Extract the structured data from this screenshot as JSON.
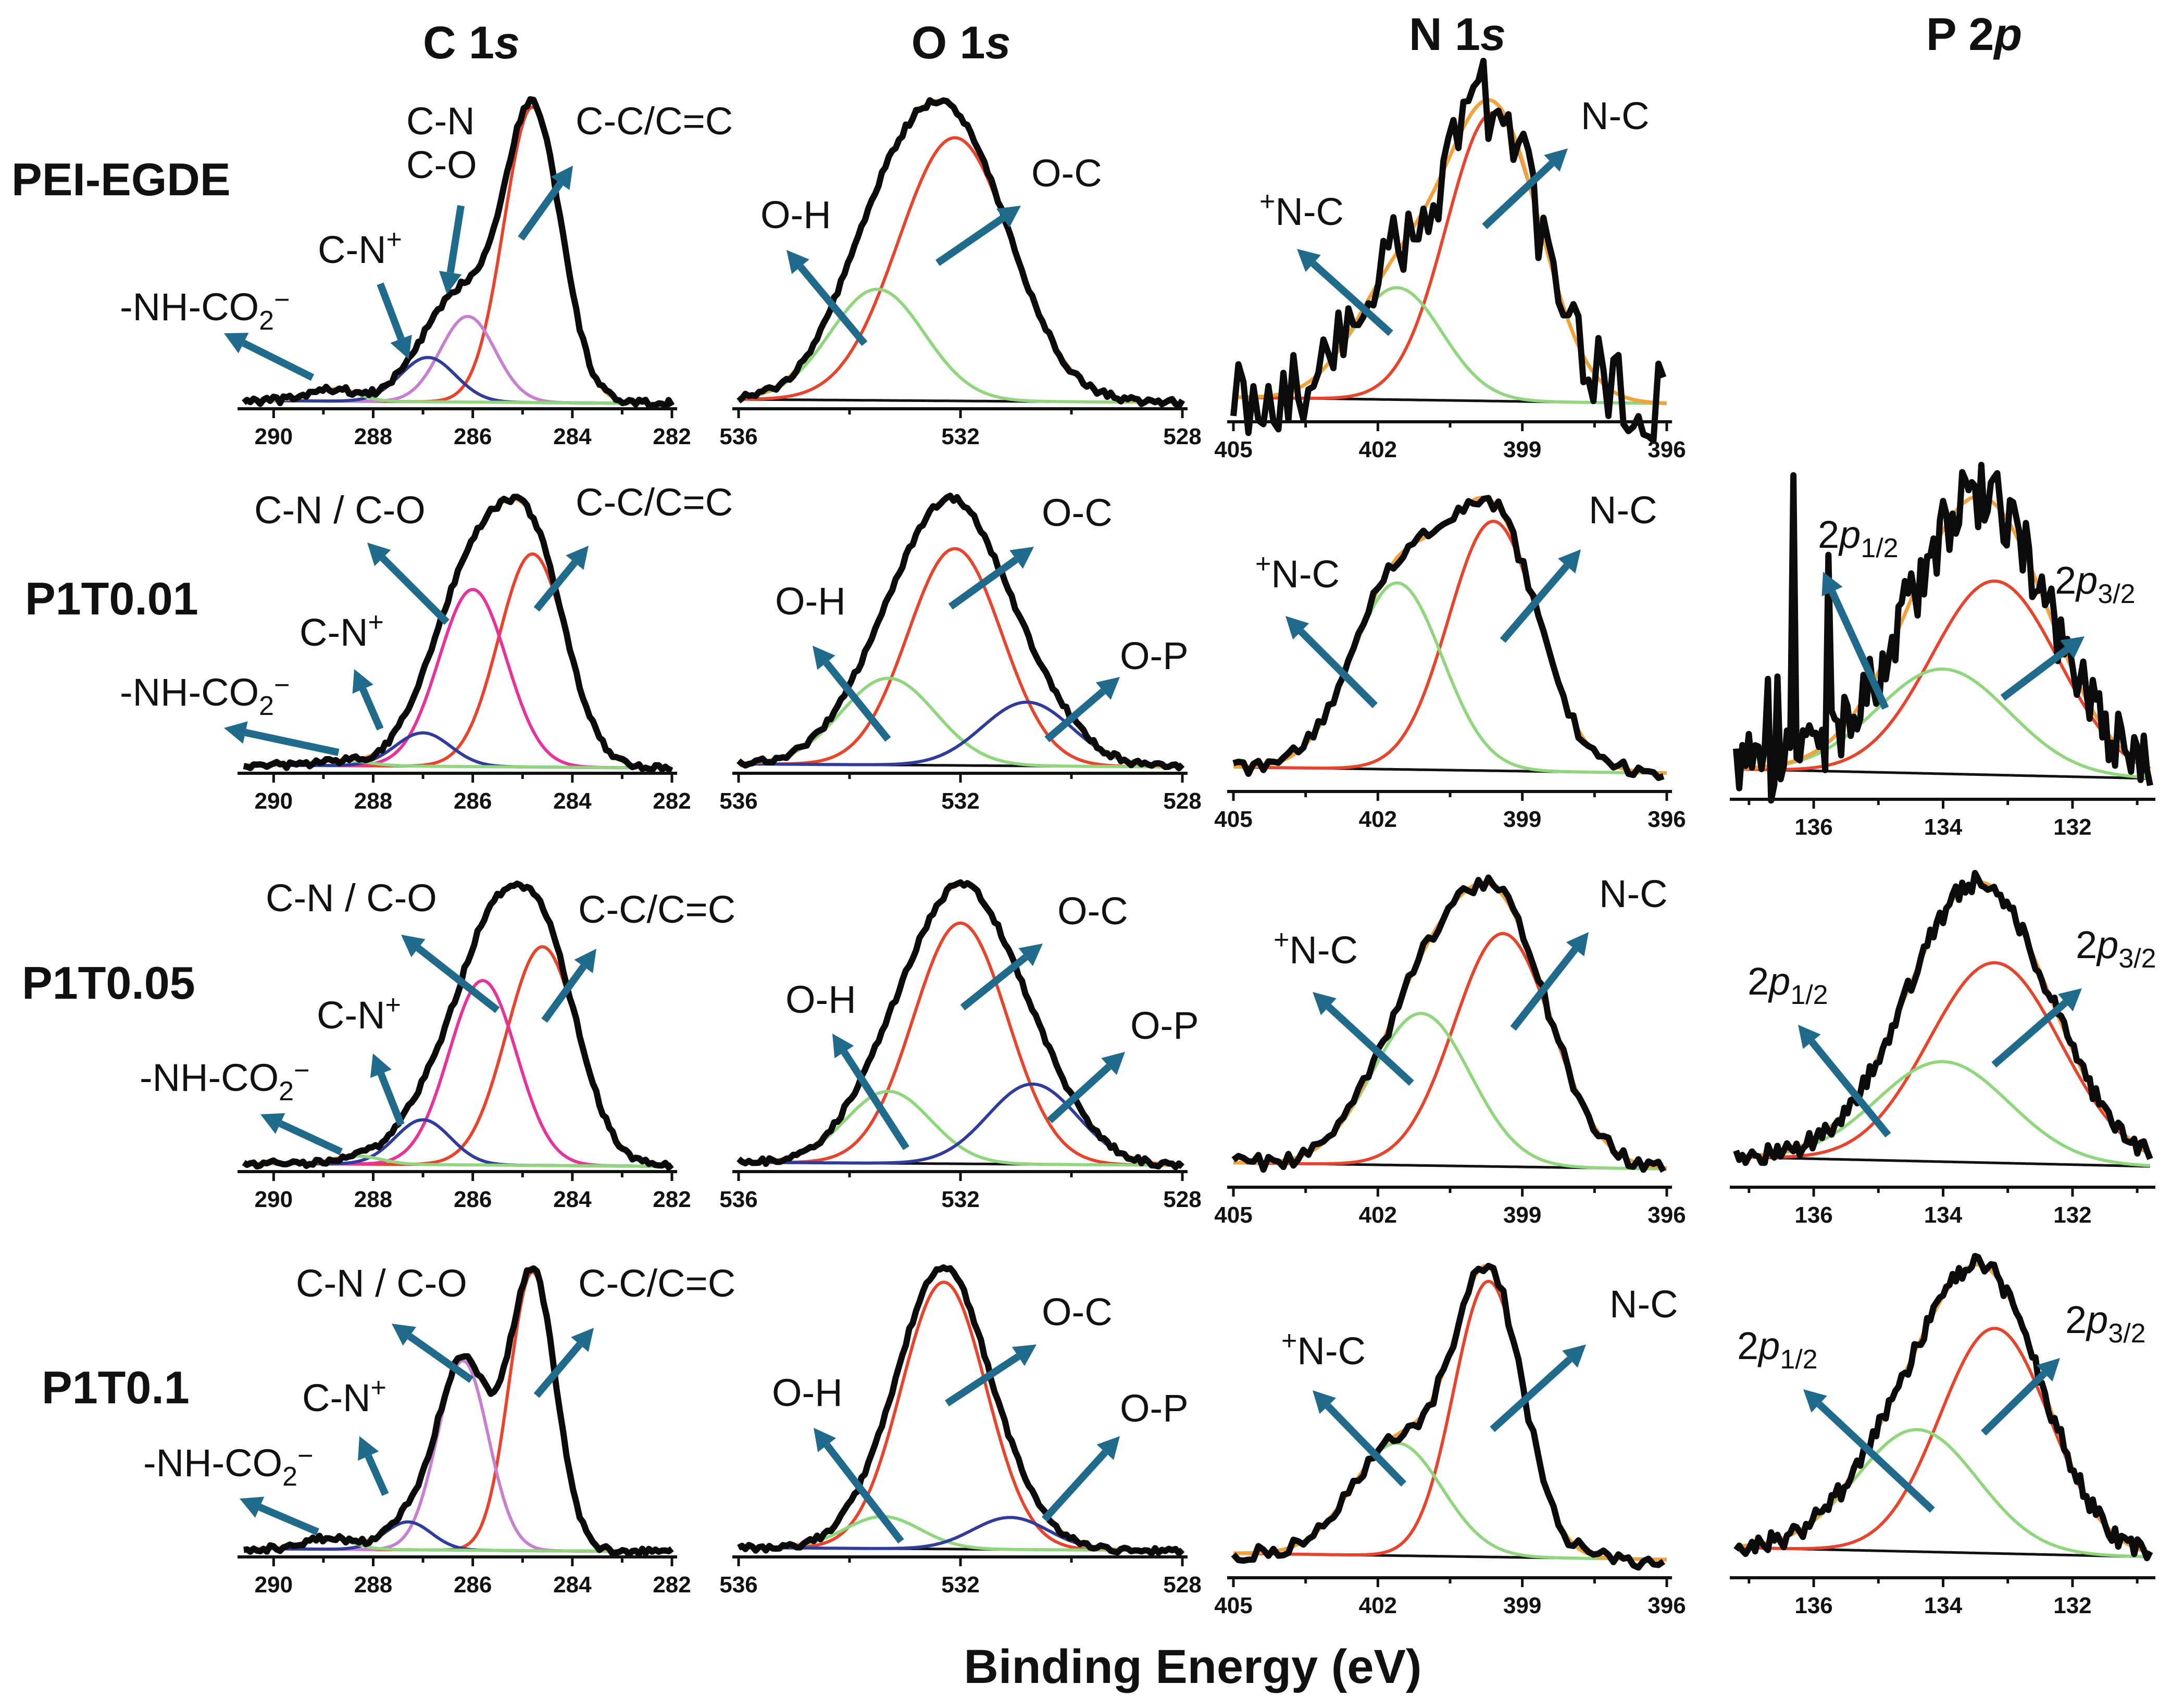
{
  "chart_data": {
    "type": "line",
    "title": "",
    "xlabel": "Binding Energy (eV)",
    "ylabel": "",
    "colors": {
      "measured": "#0b0b0b",
      "envelope": "#f2a23a",
      "baseline": "#111111",
      "red": "#e8442c",
      "green": "#8fd67d",
      "blue": "#2f3c9c",
      "purple": "#c77fd0",
      "magenta": "#e8319a",
      "arrow": "#206a8c"
    },
    "columns": [
      {
        "id": "C1s",
        "title_main": "C 1",
        "title_italic": "s",
        "xlim": [
          290.6,
          282
        ],
        "ticks": [
          290,
          288,
          286,
          284,
          282
        ]
      },
      {
        "id": "O1s",
        "title_main": "O 1",
        "title_italic": "s",
        "xlim": [
          536,
          528
        ],
        "ticks": [
          536,
          532,
          528
        ]
      },
      {
        "id": "N1s",
        "title_main": "N 1",
        "title_italic": "s",
        "xlim": [
          405,
          396
        ],
        "ticks": [
          405,
          402,
          399,
          396
        ]
      },
      {
        "id": "P2p",
        "title_main": "P 2",
        "title_italic": "p",
        "xlim": [
          137.2,
          130.8
        ],
        "ticks": [
          136,
          134,
          132
        ]
      }
    ],
    "rows": [
      {
        "label": "PEI-EGDE",
        "panels": [
          {
            "column": "C1s",
            "components": [
              {
                "name": "C-C/C=C",
                "center": 284.8,
                "fwhm": 1.35,
                "amplitude": 1.0,
                "color": "red"
              },
              {
                "name": "C-N / C-O",
                "center": 286.1,
                "fwhm": 1.3,
                "amplitude": 0.29,
                "color": "purple"
              },
              {
                "name": "C-N+",
                "center": 286.9,
                "fwhm": 1.3,
                "amplitude": 0.15,
                "color": "blue"
              },
              {
                "name": "-NH-CO2-",
                "center": 288.8,
                "fwhm": 1.1,
                "amplitude": 0.04,
                "color": "green"
              }
            ],
            "annotations": [
              {
                "text": "C-N",
                "sub": "",
                "sup": ""
              },
              {
                "text": "C-O",
                "sub": "",
                "sup": ""
              },
              {
                "text": "C-C/C=C",
                "sub": "",
                "sup": ""
              },
              {
                "text": "C-N",
                "sub": "",
                "sup": "+"
              },
              {
                "text": "-NH-CO",
                "sub": "2",
                "sup": "−"
              }
            ]
          },
          {
            "column": "O1s",
            "components": [
              {
                "name": "O-C",
                "center": 532.1,
                "fwhm": 2.4,
                "amplitude": 0.9,
                "color": "red"
              },
              {
                "name": "O-H",
                "center": 533.5,
                "fwhm": 2.0,
                "amplitude": 0.38,
                "color": "green"
              }
            ],
            "annotations": [
              {
                "text": "O-C",
                "sub": "",
                "sup": ""
              },
              {
                "text": "O-H",
                "sub": "",
                "sup": ""
              }
            ]
          },
          {
            "column": "N1s",
            "components": [
              {
                "name": "N-C",
                "center": 399.6,
                "fwhm": 2.3,
                "amplitude": 0.85,
                "color": "red"
              },
              {
                "name": "+N-C",
                "center": 401.6,
                "fwhm": 2.2,
                "amplitude": 0.33,
                "color": "green"
              }
            ],
            "annotations": [
              {
                "text": "N-C",
                "sub": "",
                "sup": ""
              },
              {
                "text": "N-C",
                "sub": "",
                "sup": "+"
              }
            ]
          }
        ]
      },
      {
        "label": "P1T0.01",
        "panels": [
          {
            "column": "C1s",
            "components": [
              {
                "name": "C-C/C=C",
                "center": 284.8,
                "fwhm": 1.6,
                "amplitude": 0.83,
                "color": "red"
              },
              {
                "name": "C-N / C-O",
                "center": 286.0,
                "fwhm": 1.6,
                "amplitude": 0.69,
                "color": "magenta"
              },
              {
                "name": "C-N+",
                "center": 287.0,
                "fwhm": 1.3,
                "amplitude": 0.13,
                "color": "blue"
              },
              {
                "name": "-NH-CO2-",
                "center": 288.6,
                "fwhm": 1.2,
                "amplitude": 0.02,
                "color": "green"
              }
            ],
            "annotations": [
              {
                "text": "C-N / C-O",
                "sub": "",
                "sup": ""
              },
              {
                "text": "C-C/C=C",
                "sub": "",
                "sup": ""
              },
              {
                "text": "C-N",
                "sub": "",
                "sup": "+"
              },
              {
                "text": "-NH-CO",
                "sub": "2",
                "sup": "−"
              }
            ]
          },
          {
            "column": "O1s",
            "components": [
              {
                "name": "O-C",
                "center": 532.1,
                "fwhm": 2.0,
                "amplitude": 0.85,
                "color": "red"
              },
              {
                "name": "O-H",
                "center": 533.3,
                "fwhm": 2.0,
                "amplitude": 0.34,
                "color": "green"
              },
              {
                "name": "O-P",
                "center": 530.8,
                "fwhm": 1.9,
                "amplitude": 0.25,
                "color": "blue"
              }
            ],
            "annotations": [
              {
                "text": "O-C",
                "sub": "",
                "sup": ""
              },
              {
                "text": "O-H",
                "sub": "",
                "sup": ""
              },
              {
                "text": "O-P",
                "sub": "",
                "sup": ""
              }
            ]
          },
          {
            "column": "N1s",
            "components": [
              {
                "name": "N-C",
                "center": 399.6,
                "fwhm": 2.2,
                "amplitude": 0.95,
                "color": "red"
              },
              {
                "name": "+N-C",
                "center": 401.6,
                "fwhm": 2.2,
                "amplitude": 0.71,
                "color": "green"
              }
            ],
            "annotations": [
              {
                "text": "N-C",
                "sub": "",
                "sup": ""
              },
              {
                "text": "N-C",
                "sub": "",
                "sup": "+"
              }
            ]
          },
          {
            "column": "P2p",
            "components": [
              {
                "name": "2p3/2",
                "center": 133.2,
                "fwhm": 2.3,
                "amplitude": 0.5,
                "color": "red"
              },
              {
                "name": "2p1/2",
                "center": 134.0,
                "fwhm": 2.4,
                "amplitude": 0.27,
                "color": "green"
              }
            ],
            "annotations": [
              {
                "text": "2",
                "italic": "p",
                "sub": "1/2"
              },
              {
                "text": "2",
                "italic": "p",
                "sub": "3/2"
              }
            ]
          }
        ]
      },
      {
        "label": "P1T0.05",
        "panels": [
          {
            "column": "C1s",
            "components": [
              {
                "name": "C-C/C=C",
                "center": 284.6,
                "fwhm": 1.7,
                "amplitude": 0.83,
                "color": "red"
              },
              {
                "name": "C-N / C-O",
                "center": 285.8,
                "fwhm": 1.6,
                "amplitude": 0.7,
                "color": "magenta"
              },
              {
                "name": "C-N+",
                "center": 287.0,
                "fwhm": 1.3,
                "amplitude": 0.17,
                "color": "blue"
              },
              {
                "name": "-NH-CO2-",
                "center": 288.3,
                "fwhm": 1.1,
                "amplitude": 0.03,
                "color": "green"
              }
            ],
            "annotations": [
              {
                "text": "C-N / C-O",
                "sub": "",
                "sup": ""
              },
              {
                "text": "C-C/C=C",
                "sub": "",
                "sup": ""
              },
              {
                "text": "C-N",
                "sub": "",
                "sup": "+"
              },
              {
                "text": "-NH-CO",
                "sub": "2",
                "sup": "−"
              }
            ]
          },
          {
            "column": "O1s",
            "components": [
              {
                "name": "O-C",
                "center": 532.0,
                "fwhm": 2.0,
                "amplitude": 0.87,
                "color": "red"
              },
              {
                "name": "O-H",
                "center": 533.3,
                "fwhm": 1.8,
                "amplitude": 0.26,
                "color": "green"
              },
              {
                "name": "O-P",
                "center": 530.7,
                "fwhm": 1.9,
                "amplitude": 0.29,
                "color": "blue"
              }
            ],
            "annotations": [
              {
                "text": "O-C",
                "sub": "",
                "sup": ""
              },
              {
                "text": "O-H",
                "sub": "",
                "sup": ""
              },
              {
                "text": "O-P",
                "sub": "",
                "sup": ""
              }
            ]
          },
          {
            "column": "N1s",
            "components": [
              {
                "name": "N-C",
                "center": 399.4,
                "fwhm": 2.4,
                "amplitude": 0.92,
                "color": "red"
              },
              {
                "name": "+N-C",
                "center": 401.1,
                "fwhm": 2.4,
                "amplitude": 0.6,
                "color": "green"
              }
            ],
            "annotations": [
              {
                "text": "N-C",
                "sub": "",
                "sup": ""
              },
              {
                "text": "N-C",
                "sub": "",
                "sup": "+"
              }
            ]
          },
          {
            "column": "P2p",
            "components": [
              {
                "name": "2p3/2",
                "center": 133.2,
                "fwhm": 2.4,
                "amplitude": 0.7,
                "color": "red"
              },
              {
                "name": "2p1/2",
                "center": 134.0,
                "fwhm": 2.4,
                "amplitude": 0.35,
                "color": "green"
              }
            ],
            "annotations": [
              {
                "text": "2",
                "italic": "p",
                "sub": "1/2"
              },
              {
                "text": "2",
                "italic": "p",
                "sub": "3/2"
              }
            ]
          }
        ]
      },
      {
        "label": "P1T0.1",
        "panels": [
          {
            "column": "C1s",
            "components": [
              {
                "name": "C-C/C=C",
                "center": 284.8,
                "fwhm": 1.1,
                "amplitude": 1.0,
                "color": "red"
              },
              {
                "name": "C-N / C-O",
                "center": 286.2,
                "fwhm": 1.2,
                "amplitude": 0.68,
                "color": "purple"
              },
              {
                "name": "C-N+",
                "center": 287.3,
                "fwhm": 1.1,
                "amplitude": 0.1,
                "color": "blue"
              },
              {
                "name": "-NH-CO2-",
                "center": 288.9,
                "fwhm": 1.1,
                "amplitude": 0.04,
                "color": "green"
              }
            ],
            "annotations": [
              {
                "text": "C-N / C-O",
                "sub": "",
                "sup": ""
              },
              {
                "text": "C-C/C=C",
                "sub": "",
                "sup": ""
              },
              {
                "text": "C-N",
                "sub": "",
                "sup": "+"
              },
              {
                "text": "-NH-CO",
                "sub": "2",
                "sup": "−"
              }
            ]
          },
          {
            "column": "O1s",
            "components": [
              {
                "name": "O-C",
                "center": 532.3,
                "fwhm": 1.8,
                "amplitude": 1.0,
                "color": "red"
              },
              {
                "name": "O-H",
                "center": 533.4,
                "fwhm": 1.6,
                "amplitude": 0.12,
                "color": "green"
              },
              {
                "name": "O-P",
                "center": 531.1,
                "fwhm": 1.6,
                "amplitude": 0.12,
                "color": "blue"
              }
            ],
            "annotations": [
              {
                "text": "O-C",
                "sub": "",
                "sup": ""
              },
              {
                "text": "O-H",
                "sub": "",
                "sup": ""
              },
              {
                "text": "O-P",
                "sub": "",
                "sup": ""
              }
            ]
          },
          {
            "column": "N1s",
            "components": [
              {
                "name": "N-C",
                "center": 399.7,
                "fwhm": 1.7,
                "amplitude": 0.98,
                "color": "red"
              },
              {
                "name": "+N-C",
                "center": 401.6,
                "fwhm": 2.2,
                "amplitude": 0.4,
                "color": "green"
              }
            ],
            "annotations": [
              {
                "text": "N-C",
                "sub": "",
                "sup": ""
              },
              {
                "text": "N-C",
                "sub": "",
                "sup": "+"
              }
            ]
          },
          {
            "column": "P2p",
            "components": [
              {
                "name": "2p3/2",
                "center": 133.2,
                "fwhm": 2.0,
                "amplitude": 0.83,
                "color": "red"
              },
              {
                "name": "2p1/2",
                "center": 134.4,
                "fwhm": 2.2,
                "amplitude": 0.45,
                "color": "green"
              }
            ],
            "annotations": [
              {
                "text": "2",
                "italic": "p",
                "sub": "1/2"
              },
              {
                "text": "2",
                "italic": "p",
                "sub": "3/2"
              }
            ]
          }
        ]
      }
    ]
  }
}
